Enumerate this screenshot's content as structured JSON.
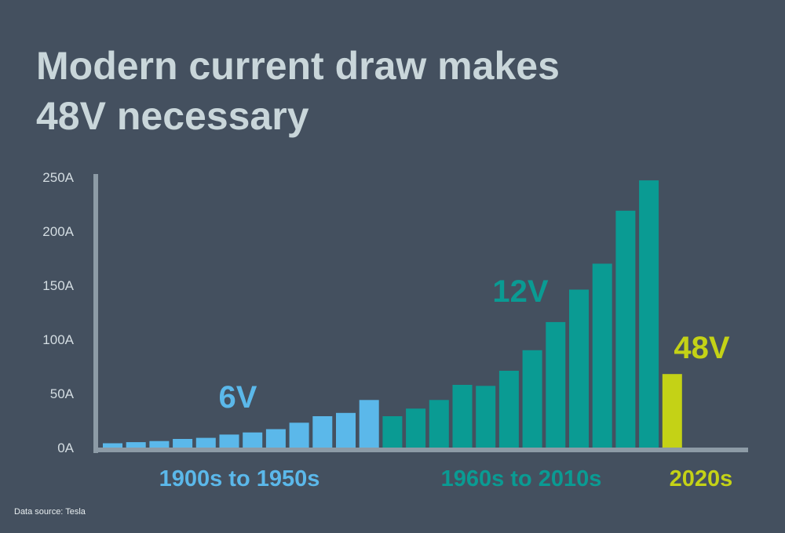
{
  "title_line1": "Modern current draw makes",
  "title_line2": "48V necessary",
  "source": "Data source: Tesla",
  "colors": {
    "background": "#44505f",
    "title": "#c9d6da",
    "axis": "#8d9ba6",
    "tick_label": "#d4dde2",
    "6V": "#5bb8ea",
    "12V": "#0a9b93",
    "48V": "#c4d216"
  },
  "chart_data": {
    "type": "bar",
    "y_ticks": [
      "0A",
      "50A",
      "100A",
      "150A",
      "200A",
      "250A"
    ],
    "ylim": [
      0,
      250
    ],
    "grid": false,
    "values": [
      4,
      5,
      6,
      8,
      9,
      12,
      14,
      17,
      23,
      29,
      32,
      44,
      29,
      36,
      44,
      58,
      57,
      71,
      90,
      116,
      146,
      170,
      219,
      247,
      68
    ],
    "series": [
      {
        "name": "6V",
        "era": "1900s to 1950s",
        "color": "#5bb8ea",
        "start": 0,
        "count": 12
      },
      {
        "name": "12V",
        "era": "1960s to 2010s",
        "color": "#0a9b93",
        "start": 12,
        "count": 12
      },
      {
        "name": "48V",
        "era": "2020s",
        "color": "#c4d216",
        "start": 24,
        "count": 1
      }
    ]
  }
}
